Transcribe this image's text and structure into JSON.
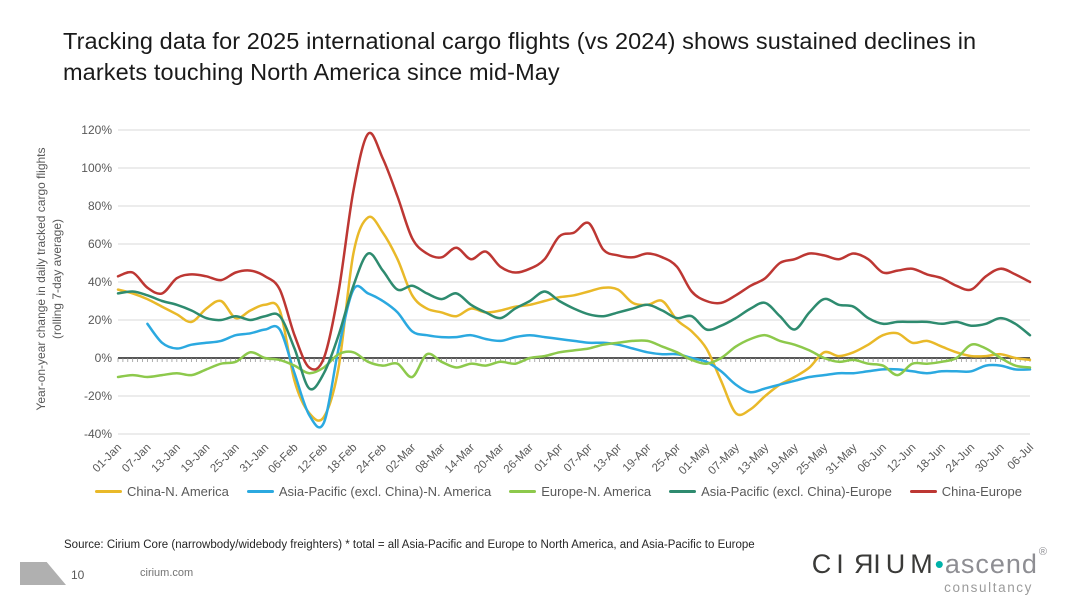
{
  "slide": {
    "title": "Tracking data for 2025 international cargo flights (vs 2024) shows sustained declines in markets touching North America since mid-May",
    "source_note": "Source: Cirium Core (narrowbody/widebody freighters) * total = all Asia-Pacific and Europe to North America, and Asia-Pacific to Europe",
    "page_number": "10",
    "website": "cirium.com",
    "logo": {
      "part1": "CI",
      "part_mirrored_r": "R",
      "part2": "IUM",
      "separator": "•",
      "secondary": "ascend",
      "registered": "®",
      "tagline": "consultancy",
      "dot_color": "#00b2a9"
    }
  },
  "chart_data": {
    "type": "line",
    "title": "",
    "xlabel": "",
    "ylabel": "Year-on-year change in daily tracked cargo flights\n(rolling 7-day average)",
    "ylim": [
      -40,
      120
    ],
    "ytick_step": 20,
    "ytick_format": "percent",
    "grid": "horizontal",
    "legend_position": "bottom",
    "zero_line": true,
    "daily_minor_ticks_on_zero_line": true,
    "sample_interval_days": 3,
    "x_tick_interval_days": 6,
    "x_tick_labels": [
      "01-Jan",
      "07-Jan",
      "13-Jan",
      "19-Jan",
      "25-Jan",
      "31-Jan",
      "06-Feb",
      "12-Feb",
      "18-Feb",
      "24-Feb",
      "02-Mar",
      "08-Mar",
      "14-Mar",
      "20-Mar",
      "26-Mar",
      "01-Apr",
      "07-Apr",
      "13-Apr",
      "19-Apr",
      "25-Apr",
      "01-May",
      "07-May",
      "13-May",
      "19-May",
      "25-May",
      "31-May",
      "06-Jun",
      "12-Jun",
      "18-Jun",
      "24-Jun",
      "30-Jun",
      "06-Jul"
    ],
    "series": [
      {
        "name": "China-N. America",
        "color": "#e9b929",
        "values": [
          36,
          34,
          31,
          27,
          23,
          19,
          26,
          30,
          21,
          25,
          28,
          25,
          -12,
          -29,
          -31,
          -5,
          55,
          74,
          66,
          52,
          33,
          26,
          24,
          22,
          26,
          24,
          25,
          27,
          28,
          30,
          32,
          33,
          35,
          37,
          36,
          29,
          28,
          30,
          20,
          14,
          5,
          -12,
          -29,
          -27,
          -20,
          -14,
          -10,
          -5,
          3,
          1,
          3,
          7,
          12,
          13,
          8,
          9,
          6,
          3,
          1,
          1,
          2,
          0,
          -1
        ]
      },
      {
        "name": "Asia-Pacific (excl. China)-N. America",
        "color": "#2ba9e0",
        "values": [
          null,
          null,
          18,
          8,
          5,
          7,
          8,
          9,
          12,
          13,
          15,
          15,
          -8,
          -30,
          -34,
          5,
          36,
          34,
          30,
          24,
          14,
          12,
          11,
          11,
          12,
          10,
          9,
          11,
          12,
          11,
          10,
          9,
          8,
          8,
          7,
          5,
          3,
          2,
          2,
          0,
          -2,
          -7,
          -14,
          -18,
          -16,
          -14,
          -12,
          -10,
          -9,
          -8,
          -8,
          -7,
          -6,
          -6,
          -7,
          -8,
          -7,
          -7,
          -7,
          -4,
          -4,
          -6,
          -6
        ]
      },
      {
        "name": "Europe-N. America",
        "color": "#8dc94c",
        "values": [
          -10,
          -9,
          -10,
          -9,
          -8,
          -9,
          -6,
          -3,
          -2,
          3,
          0,
          -1,
          -4,
          -8,
          -5,
          2,
          3,
          -2,
          -4,
          -3,
          -10,
          2,
          -2,
          -5,
          -3,
          -4,
          -2,
          -3,
          0,
          1,
          3,
          4,
          5,
          7,
          8,
          9,
          9,
          6,
          3,
          -1,
          -3,
          0,
          6,
          10,
          12,
          9,
          7,
          4,
          0,
          -2,
          -1,
          -3,
          -4,
          -9,
          -3,
          -3,
          -2,
          0,
          7,
          5,
          0,
          -4,
          -5
        ]
      },
      {
        "name": "Asia-Pacific (excl. China)-Europe",
        "color": "#2e8b6f",
        "values": [
          34,
          35,
          33,
          30,
          28,
          25,
          21,
          20,
          22,
          20,
          22,
          22,
          5,
          -16,
          -8,
          12,
          38,
          55,
          46,
          36,
          38,
          34,
          31,
          34,
          28,
          24,
          21,
          26,
          30,
          35,
          30,
          26,
          23,
          22,
          24,
          26,
          28,
          25,
          21,
          22,
          15,
          17,
          21,
          26,
          29,
          22,
          15,
          24,
          31,
          28,
          27,
          21,
          18,
          19,
          19,
          19,
          18,
          19,
          17,
          18,
          21,
          18,
          12
        ]
      },
      {
        "name": "China-Europe",
        "color": "#bd3733",
        "values": [
          43,
          45,
          37,
          34,
          42,
          44,
          43,
          41,
          45,
          46,
          43,
          36,
          12,
          -5,
          0,
          35,
          88,
          118,
          105,
          85,
          63,
          55,
          53,
          58,
          52,
          56,
          48,
          45,
          47,
          52,
          64,
          66,
          71,
          57,
          54,
          53,
          55,
          53,
          48,
          35,
          30,
          29,
          33,
          38,
          42,
          50,
          52,
          55,
          54,
          52,
          55,
          52,
          45,
          46,
          47,
          44,
          42,
          38,
          36,
          43,
          47,
          44,
          40
        ]
      }
    ]
  }
}
